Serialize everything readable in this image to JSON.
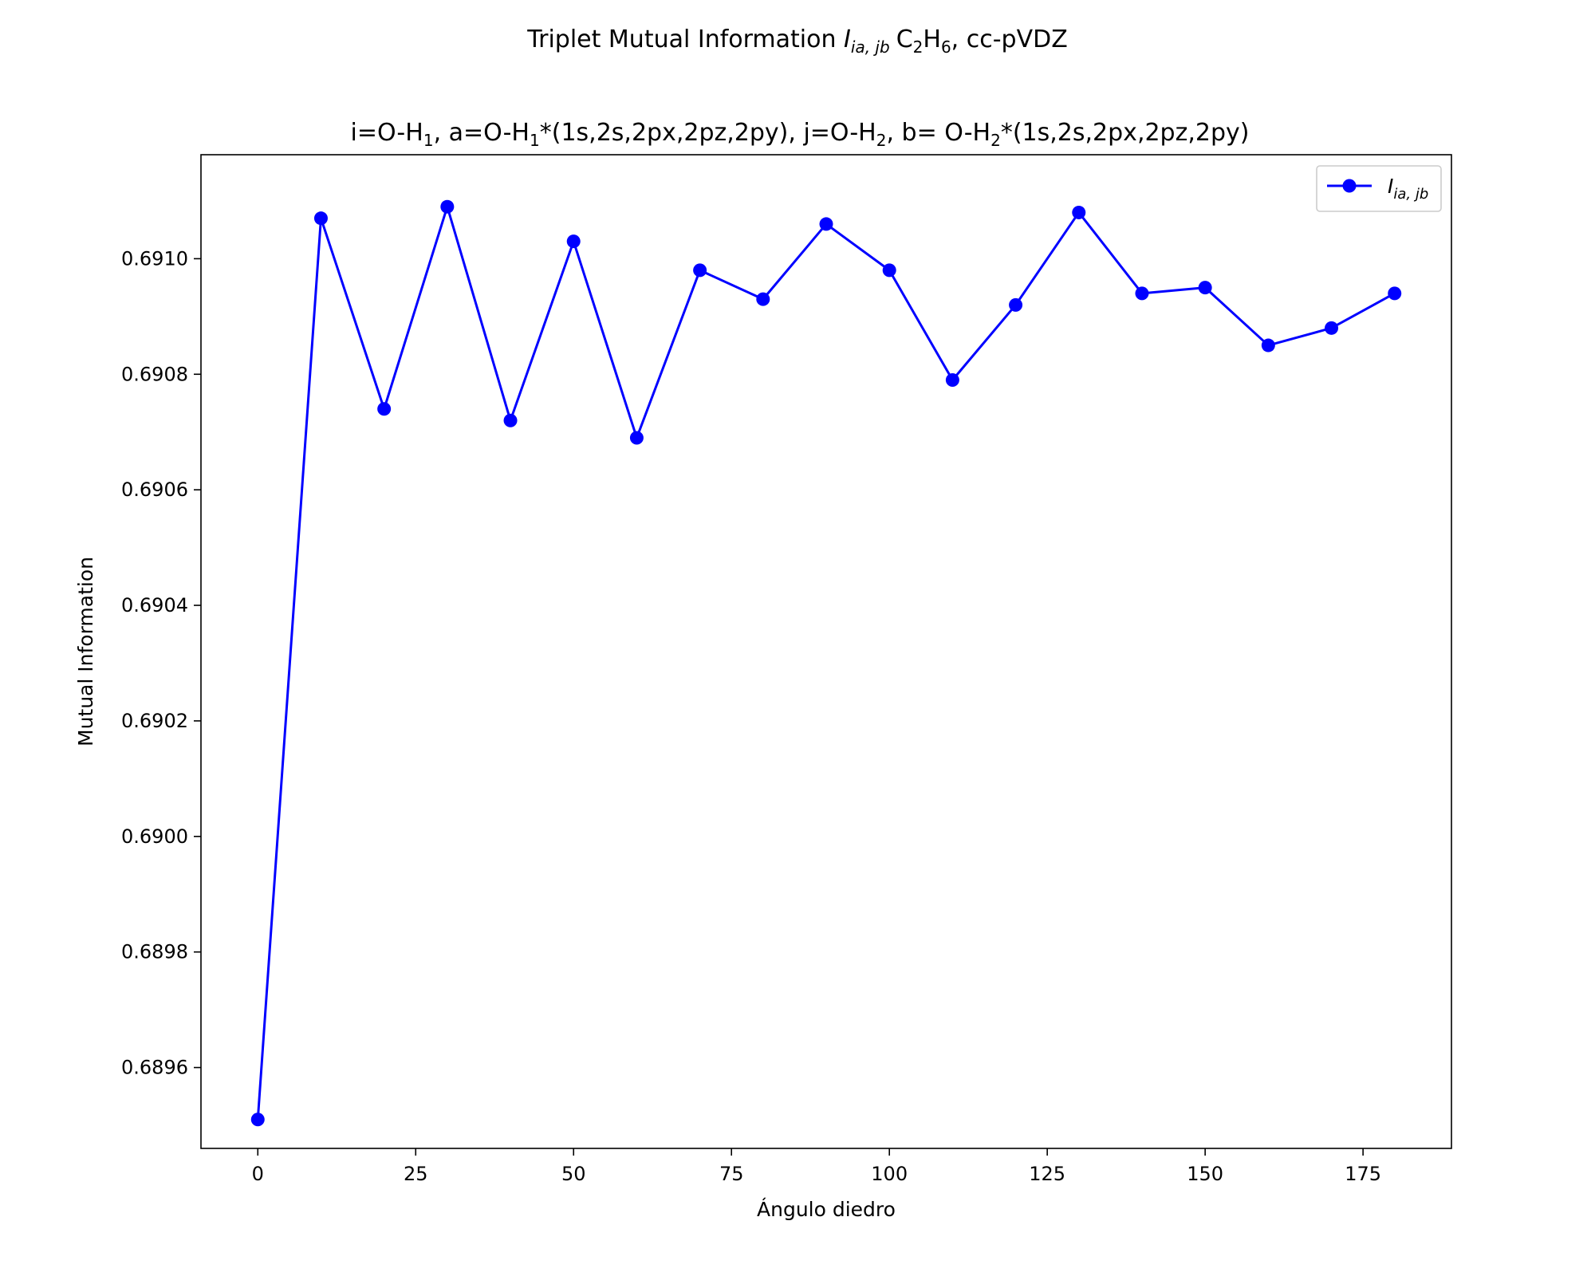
{
  "figure": {
    "suptitle": {
      "prefix": "Triplet Mutual Information ",
      "symbol": "I",
      "symbol_subscript": "ia, jb",
      "mol_a": "C",
      "mol_a_sub": "2",
      "mol_b": "H",
      "mol_b_sub": "6",
      "suffix": ", cc-pVDZ"
    },
    "axes_title": {
      "parts": [
        {
          "text": "i=O-H"
        },
        {
          "text": "1",
          "sub": true
        },
        {
          "text": ", a=O-H"
        },
        {
          "text": "1",
          "sub": true
        },
        {
          "text": "*(1s,2s,2px,2pz,2py), j=O-H"
        },
        {
          "text": "2",
          "sub": true
        },
        {
          "text": ", b= O-H"
        },
        {
          "text": "2",
          "sub": true
        },
        {
          "text": "*(1s,2s,2px,2pz,2py)"
        }
      ]
    }
  },
  "chart_data": {
    "type": "line",
    "xlabel": "Ángulo diedro",
    "ylabel": "Mutual Information",
    "xlim": [
      -9,
      189
    ],
    "ylim": [
      0.68946,
      0.69118
    ],
    "x_ticks": [
      0,
      25,
      50,
      75,
      100,
      125,
      150,
      175
    ],
    "x_tick_labels": [
      "0",
      "25",
      "50",
      "75",
      "100",
      "125",
      "150",
      "175"
    ],
    "y_ticks": [
      0.6896,
      0.6898,
      0.69,
      0.6902,
      0.6904,
      0.6906,
      0.6908,
      0.691
    ],
    "y_tick_labels": [
      "0.6896",
      "0.6898",
      "0.6900",
      "0.6902",
      "0.6904",
      "0.6906",
      "0.6908",
      "0.6910"
    ],
    "grid": false,
    "legend_position": "top-right",
    "series": [
      {
        "name": "I_ia,jb",
        "legend_symbol": "I",
        "legend_subscript": "ia, jb",
        "color": "#0000ff",
        "marker": "circle",
        "x": [
          0,
          10,
          20,
          30,
          40,
          50,
          60,
          70,
          80,
          90,
          100,
          110,
          120,
          130,
          140,
          150,
          160,
          170,
          180
        ],
        "y": [
          0.68951,
          0.69107,
          0.69074,
          0.69109,
          0.69072,
          0.69103,
          0.69069,
          0.69098,
          0.69093,
          0.69106,
          0.69098,
          0.69079,
          0.69092,
          0.69108,
          0.69094,
          0.69095,
          0.69085,
          0.69088,
          0.69094
        ]
      }
    ]
  }
}
